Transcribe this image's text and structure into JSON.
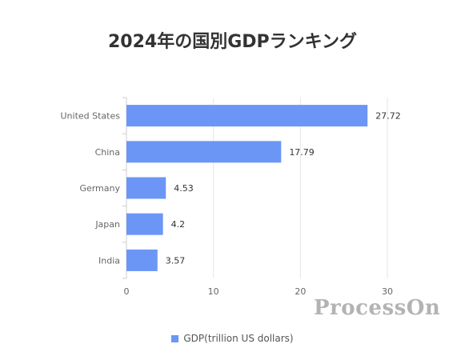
{
  "chart_data": {
    "type": "bar",
    "orientation": "horizontal",
    "title": "2024年の国別GDPランキング",
    "categories": [
      "United States",
      "China",
      "Germany",
      "Japan",
      "India"
    ],
    "series": [
      {
        "name": "GDP(trillion US dollars)",
        "values": [
          27.72,
          17.79,
          4.53,
          4.2,
          3.57
        ]
      }
    ],
    "data_labels": [
      "27.72",
      "17.79",
      "4.53",
      "4.2",
      "3.57"
    ],
    "x_ticks": [
      "0",
      "10",
      "20",
      "30"
    ],
    "xlim": [
      0,
      30
    ],
    "grid": true,
    "legend_position": "bottom",
    "colors": {
      "bar": "#6b96f5",
      "grid": "#e6e6e6",
      "axis": "#cccccc",
      "label": "#666666"
    }
  },
  "watermark": "ProcessOn"
}
